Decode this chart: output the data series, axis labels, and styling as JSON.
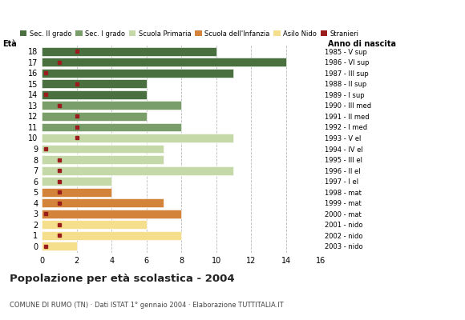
{
  "ages": [
    18,
    17,
    16,
    15,
    14,
    13,
    12,
    11,
    10,
    9,
    8,
    7,
    6,
    5,
    4,
    3,
    2,
    1,
    0
  ],
  "anno_di_nascita": [
    "1985 - V sup",
    "1986 - VI sup",
    "1987 - III sup",
    "1988 - II sup",
    "1989 - I sup",
    "1990 - III med",
    "1991 - II med",
    "1992 - I med",
    "1993 - V el",
    "1994 - IV el",
    "1995 - III el",
    "1996 - II el",
    "1997 - I el",
    "1998 - mat",
    "1999 - mat",
    "2000 - mat",
    "2001 - nido",
    "2002 - nido",
    "2003 - nido"
  ],
  "bar_values": [
    10,
    14,
    11,
    6,
    6,
    8,
    6,
    8,
    11,
    7,
    7,
    11,
    4,
    4,
    7,
    8,
    6,
    8,
    2
  ],
  "stranieri_x": [
    2,
    1,
    0.2,
    2,
    0.2,
    1,
    2,
    2,
    2,
    0.2,
    1,
    1,
    1,
    1,
    1,
    0.2,
    1,
    1,
    0.2
  ],
  "colors": {
    "sec2": "#4a7040",
    "sec1": "#7a9e6a",
    "primaria": "#c5d9a8",
    "infanzia": "#d4843a",
    "nido": "#f5de8c",
    "stranieri": "#9b1c1c"
  },
  "school_categories": {
    "sec2": [
      18,
      17,
      16,
      15,
      14
    ],
    "sec1": [
      13,
      12,
      11
    ],
    "primaria": [
      10,
      9,
      8,
      7,
      6
    ],
    "infanzia": [
      5,
      4,
      3
    ],
    "nido": [
      2,
      1,
      0
    ]
  },
  "legend_labels": [
    "Sec. II grado",
    "Sec. I grado",
    "Scuola Primaria",
    "Scuola dell'Infanzia",
    "Asilo Nido",
    "Stranieri"
  ],
  "title": "Popolazione per età scolastica - 2004",
  "subtitle": "COMUNE DI RUMO (TN) · Dati ISTAT 1° gennaio 2004 · Elaborazione TUTTITALIA.IT",
  "eta_label": "Età",
  "anno_label": "Anno di nascita",
  "xlim": [
    0,
    16
  ],
  "xticks": [
    0,
    2,
    4,
    6,
    8,
    10,
    12,
    14,
    16
  ],
  "background_color": "#ffffff",
  "grid_color": "#bbbbbb"
}
